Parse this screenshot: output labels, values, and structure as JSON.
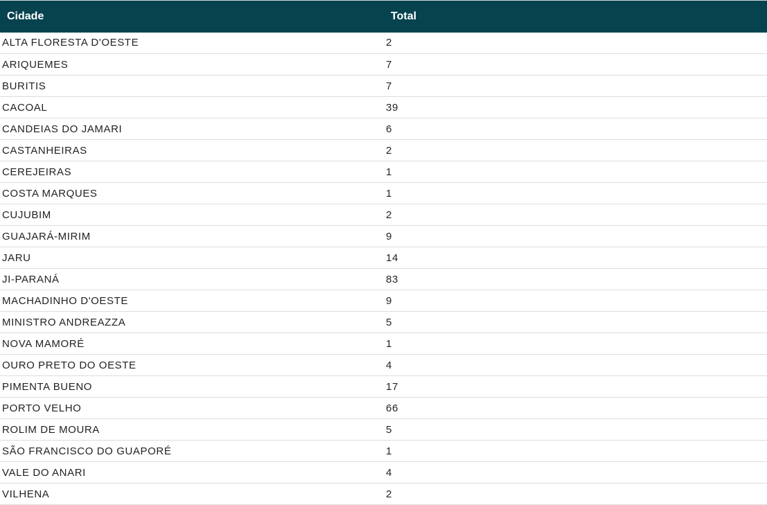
{
  "table": {
    "columns": [
      "Cidade",
      "Total"
    ],
    "header_color": "#06434f",
    "rows": [
      {
        "city": "ALTA FLORESTA D'OESTE",
        "total": "2"
      },
      {
        "city": "ARIQUEMES",
        "total": "7"
      },
      {
        "city": "BURITIS",
        "total": "7"
      },
      {
        "city": "CACOAL",
        "total": "39"
      },
      {
        "city": "CANDEIAS DO JAMARI",
        "total": "6"
      },
      {
        "city": "CASTANHEIRAS",
        "total": "2"
      },
      {
        "city": "CEREJEIRAS",
        "total": "1"
      },
      {
        "city": "COSTA MARQUES",
        "total": "1"
      },
      {
        "city": "CUJUBIM",
        "total": "2"
      },
      {
        "city": "GUAJARÁ-MIRIM",
        "total": "9"
      },
      {
        "city": "JARU",
        "total": "14"
      },
      {
        "city": "JI-PARANÁ",
        "total": "83"
      },
      {
        "city": "MACHADINHO D'OESTE",
        "total": "9"
      },
      {
        "city": "MINISTRO ANDREAZZA",
        "total": "5"
      },
      {
        "city": "NOVA MAMORÉ",
        "total": "1"
      },
      {
        "city": "OURO PRETO DO OESTE",
        "total": "4"
      },
      {
        "city": "PIMENTA BUENO",
        "total": "17"
      },
      {
        "city": "PORTO VELHO",
        "total": "66"
      },
      {
        "city": "ROLIM DE MOURA",
        "total": "5"
      },
      {
        "city": "SÃO FRANCISCO DO GUAPORÉ",
        "total": "1"
      },
      {
        "city": "VALE DO ANARI",
        "total": "4"
      },
      {
        "city": "VILHENA",
        "total": "2"
      }
    ]
  }
}
